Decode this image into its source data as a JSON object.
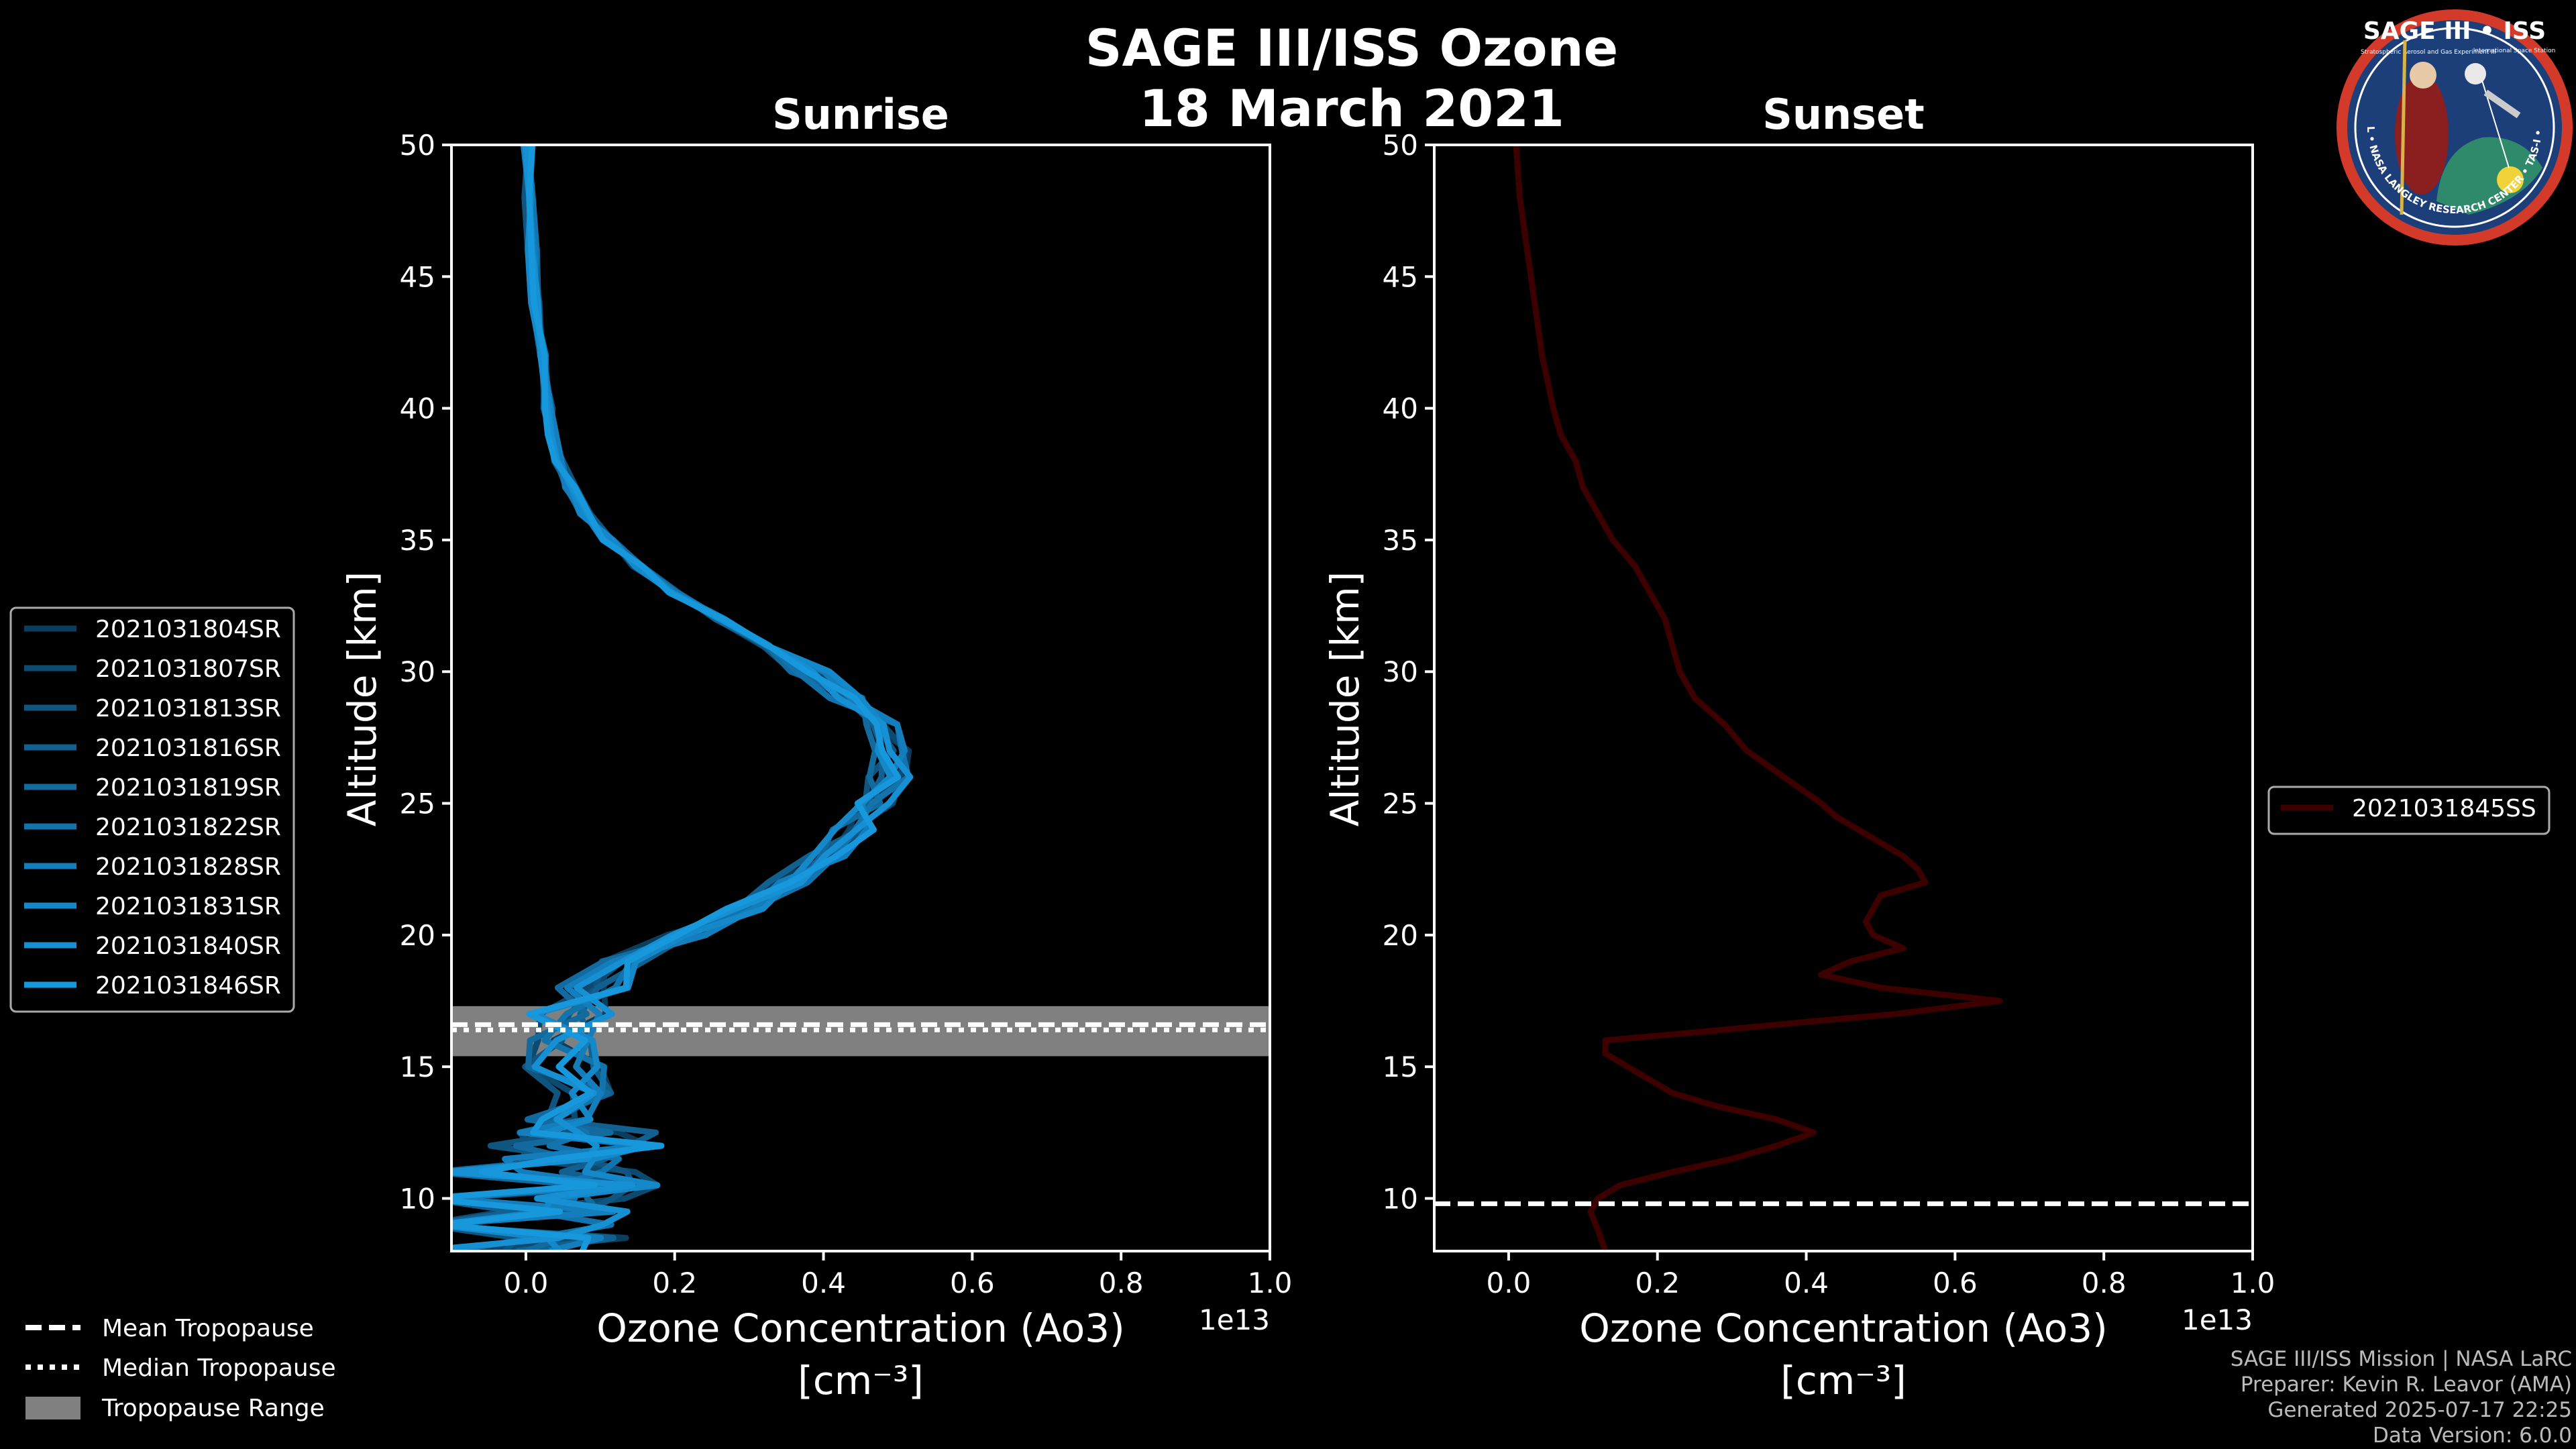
{
  "chart_data": [
    {
      "type": "line",
      "subtitle": "Sunrise",
      "xlabel": "Ozone Concentration (Ao3)",
      "xlabel_unit": "[cm⁻³]",
      "xscale_label": "1e13",
      "ylabel": "Altitude [km]",
      "xlim": [
        -0.1,
        1.0
      ],
      "ylim": [
        8,
        50
      ],
      "xticks": [
        0.0,
        0.2,
        0.4,
        0.6,
        0.8,
        1.0
      ],
      "xtick_labels": [
        "0.0",
        "0.2",
        "0.4",
        "0.6",
        "0.8",
        "1.0"
      ],
      "yticks": [
        10,
        15,
        20,
        25,
        30,
        35,
        40,
        45,
        50
      ],
      "mean_tropopause": 16.6,
      "median_tropopause": 16.4,
      "tropopause_range": [
        15.4,
        17.3
      ],
      "series": [
        {
          "name": "2021031804SR",
          "color": "#0b3d5c"
        },
        {
          "name": "2021031807SR",
          "color": "#0d4a70"
        },
        {
          "name": "2021031813SR",
          "color": "#0f5580"
        },
        {
          "name": "2021031816SR",
          "color": "#11608f"
        },
        {
          "name": "2021031819SR",
          "color": "#126a9e"
        },
        {
          "name": "2021031822SR",
          "color": "#1374ad"
        },
        {
          "name": "2021031828SR",
          "color": "#147ebc"
        },
        {
          "name": "2021031831SR",
          "color": "#1588c9"
        },
        {
          "name": "2021031840SR",
          "color": "#1690d3"
        },
        {
          "name": "2021031846SR",
          "color": "#1798dd"
        }
      ],
      "base_profile": [
        [
          8.0,
          0.05
        ],
        [
          9.0,
          0.02
        ],
        [
          10.0,
          0.06
        ],
        [
          11.0,
          0.03
        ],
        [
          12.0,
          0.06
        ],
        [
          13.0,
          0.05
        ],
        [
          14.0,
          0.05
        ],
        [
          15.0,
          0.05
        ],
        [
          16.0,
          0.04
        ],
        [
          17.0,
          0.05
        ],
        [
          18.0,
          0.08
        ],
        [
          19.0,
          0.13
        ],
        [
          20.0,
          0.22
        ],
        [
          21.0,
          0.29
        ],
        [
          22.0,
          0.35
        ],
        [
          23.0,
          0.41
        ],
        [
          24.0,
          0.44
        ],
        [
          25.0,
          0.47
        ],
        [
          26.0,
          0.49
        ],
        [
          27.0,
          0.49
        ],
        [
          28.0,
          0.47
        ],
        [
          29.0,
          0.43
        ],
        [
          30.0,
          0.38
        ],
        [
          31.0,
          0.32
        ],
        [
          32.0,
          0.26
        ],
        [
          33.0,
          0.2
        ],
        [
          34.0,
          0.15
        ],
        [
          35.0,
          0.11
        ],
        [
          36.0,
          0.08
        ],
        [
          37.0,
          0.06
        ],
        [
          38.0,
          0.045
        ],
        [
          39.0,
          0.035
        ],
        [
          40.0,
          0.03
        ],
        [
          42.0,
          0.02
        ],
        [
          44.0,
          0.013
        ],
        [
          46.0,
          0.008
        ],
        [
          48.0,
          0.005
        ],
        [
          50.0,
          0.003
        ]
      ]
    },
    {
      "type": "line",
      "subtitle": "Sunset",
      "xlabel": "Ozone Concentration (Ao3)",
      "xlabel_unit": "[cm⁻³]",
      "xscale_label": "1e13",
      "ylabel": "Altitude [km]",
      "xlim": [
        -0.1,
        1.0
      ],
      "ylim": [
        8,
        50
      ],
      "xticks": [
        0.0,
        0.2,
        0.4,
        0.6,
        0.8,
        1.0
      ],
      "xtick_labels": [
        "0.0",
        "0.2",
        "0.4",
        "0.6",
        "0.8",
        "1.0"
      ],
      "yticks": [
        10,
        15,
        20,
        25,
        30,
        35,
        40,
        45,
        50
      ],
      "mean_tropopause": 9.8,
      "series": [
        {
          "name": "2021031845SS",
          "color": "#3d0000",
          "points": [
            [
              8.0,
              0.13
            ],
            [
              8.8,
              0.12
            ],
            [
              9.5,
              0.11
            ],
            [
              10.0,
              0.12
            ],
            [
              10.5,
              0.15
            ],
            [
              11.0,
              0.22
            ],
            [
              11.5,
              0.3
            ],
            [
              12.0,
              0.36
            ],
            [
              12.5,
              0.41
            ],
            [
              13.0,
              0.36
            ],
            [
              13.5,
              0.28
            ],
            [
              14.0,
              0.22
            ],
            [
              14.5,
              0.19
            ],
            [
              15.0,
              0.16
            ],
            [
              15.5,
              0.13
            ],
            [
              16.0,
              0.13
            ],
            [
              16.3,
              0.25
            ],
            [
              16.7,
              0.4
            ],
            [
              17.0,
              0.52
            ],
            [
              17.5,
              0.66
            ],
            [
              18.0,
              0.5
            ],
            [
              18.5,
              0.42
            ],
            [
              19.0,
              0.46
            ],
            [
              19.5,
              0.53
            ],
            [
              20.0,
              0.49
            ],
            [
              20.5,
              0.48
            ],
            [
              21.0,
              0.49
            ],
            [
              21.5,
              0.5
            ],
            [
              22.0,
              0.56
            ],
            [
              22.5,
              0.55
            ],
            [
              23.0,
              0.53
            ],
            [
              23.5,
              0.5
            ],
            [
              24.0,
              0.47
            ],
            [
              24.5,
              0.44
            ],
            [
              25.0,
              0.42
            ],
            [
              26.0,
              0.37
            ],
            [
              27.0,
              0.32
            ],
            [
              28.0,
              0.29
            ],
            [
              29.0,
              0.25
            ],
            [
              30.0,
              0.23
            ],
            [
              31.0,
              0.22
            ],
            [
              32.0,
              0.21
            ],
            [
              33.0,
              0.19
            ],
            [
              34.0,
              0.17
            ],
            [
              35.0,
              0.14
            ],
            [
              36.0,
              0.12
            ],
            [
              37.0,
              0.1
            ],
            [
              38.0,
              0.09
            ],
            [
              39.0,
              0.07
            ],
            [
              40.0,
              0.06
            ],
            [
              42.0,
              0.045
            ],
            [
              44.0,
              0.035
            ],
            [
              46.0,
              0.025
            ],
            [
              48.0,
              0.015
            ],
            [
              50.0,
              0.01
            ]
          ]
        }
      ]
    }
  ],
  "main_title_line1": "SAGE III/ISS Ozone",
  "main_title_line2": "18 March 2021",
  "tropopause_legend": {
    "mean": "Mean Tropopause",
    "median": "Median Tropopause",
    "range": "Tropopause Range"
  },
  "credits": [
    "SAGE III/ISS Mission | NASA LaRC",
    "Preparer: Kevin R. Leavor (AMA)",
    "Generated 2025-07-17 22:25",
    "Data Version: 6.0.0"
  ],
  "logo": {
    "title": "SAGE III • ISS",
    "ring_text": "BALL • NASA LANGLEY RESEARCH CENTER • TAS-I • ESA",
    "line_a": "Stratospheric Aerosol and Gas Experiment III",
    "line_b": "International Space Station"
  },
  "colors": {
    "background": "#000000",
    "frame": "#ffffff",
    "tropopause_band": "#808080",
    "legend_border": "#aaaaaa"
  }
}
